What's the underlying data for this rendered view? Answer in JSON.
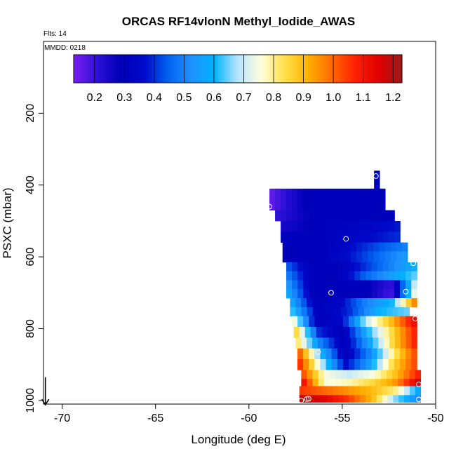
{
  "chart_data": {
    "type": "heatmap",
    "title": "ORCAS RF14vlonN Methyl_Iodide_AWAS",
    "subtitle_flts": "Flts: 14",
    "subtitle_mmdd": "MMDD: 0218",
    "xlabel": "Longitude (deg E)",
    "ylabel": "PSXC (mbar)",
    "xlim": [
      -71,
      -50
    ],
    "ylim": [
      1010,
      0
    ],
    "x_ticks": [
      -70,
      -65,
      -60,
      -55,
      -50
    ],
    "x_tick_labels": [
      "-70",
      "-65",
      "-60",
      "-55",
      "-50"
    ],
    "y_ticks": [
      200,
      400,
      600,
      800,
      1000
    ],
    "y_tick_labels": [
      "200",
      "400",
      "600",
      "800",
      "1000"
    ],
    "colorbar": {
      "min": 0.13,
      "max": 1.23,
      "ticks": [
        0.2,
        0.3,
        0.4,
        0.5,
        0.6,
        0.7,
        0.8,
        0.9,
        1.0,
        1.1,
        1.2
      ],
      "tick_labels": [
        "0.2",
        "0.3",
        "0.4",
        "0.5",
        "0.6",
        "0.7",
        "0.8",
        "0.9",
        "1.0",
        "1.1",
        "1.2"
      ],
      "stops": [
        "#7b1ff0",
        "#2c0fd8",
        "#0000b8",
        "#0008c8",
        "#0060f0",
        "#1e90ff",
        "#00b4ff",
        "#b8e4ff",
        "#ffffdc",
        "#ffe04a",
        "#ffb000",
        "#ff6a00",
        "#ff2000",
        "#e00000",
        "#a01818"
      ]
    },
    "rows": [
      {
        "p0": 360,
        "p1": 385,
        "segments": [
          {
            "x0": -53.3,
            "x1": -53.0,
            "v": [
              0.3,
              0.3
            ]
          }
        ]
      },
      {
        "p0": 385,
        "p1": 410,
        "segments": [
          {
            "x0": -53.3,
            "x1": -53.0,
            "v": [
              0.3,
              0.3
            ]
          }
        ]
      },
      {
        "p0": 410,
        "p1": 440,
        "segments": [
          {
            "x0": -58.9,
            "x1": -52.7,
            "v": [
              0.15,
              0.3,
              0.3,
              0.3
            ]
          }
        ]
      },
      {
        "p0": 440,
        "p1": 470,
        "segments": [
          {
            "x0": -58.9,
            "x1": -52.7,
            "v": [
              0.15,
              0.3,
              0.3,
              0.3
            ]
          }
        ]
      },
      {
        "p0": 470,
        "p1": 500,
        "segments": [
          {
            "x0": -58.6,
            "x1": -52.2,
            "v": [
              0.2,
              0.3,
              0.3,
              0.3
            ]
          }
        ]
      },
      {
        "p0": 500,
        "p1": 530,
        "segments": [
          {
            "x0": -58.3,
            "x1": -51.9,
            "v": [
              0.25,
              0.3,
              0.33,
              0.38
            ]
          }
        ]
      },
      {
        "p0": 530,
        "p1": 560,
        "segments": [
          {
            "x0": -58.3,
            "x1": -51.9,
            "v": [
              0.3,
              0.3,
              0.35,
              0.4
            ]
          }
        ]
      },
      {
        "p0": 560,
        "p1": 585,
        "segments": [
          {
            "x0": -58.2,
            "x1": -51.5,
            "v": [
              0.3,
              0.3,
              0.4,
              0.5
            ]
          }
        ]
      },
      {
        "p0": 585,
        "p1": 615,
        "segments": [
          {
            "x0": -58.2,
            "x1": -51.5,
            "v": [
              0.3,
              0.3,
              0.42,
              0.55
            ]
          }
        ]
      },
      {
        "p0": 615,
        "p1": 640,
        "segments": [
          {
            "x0": -58.0,
            "x1": -51.0,
            "v": [
              0.45,
              0.3,
              0.3,
              0.4,
              0.5,
              0.6
            ]
          }
        ]
      },
      {
        "p0": 640,
        "p1": 665,
        "segments": [
          {
            "x0": -58.0,
            "x1": -51.0,
            "v": [
              0.5,
              0.3,
              0.3,
              0.45,
              0.55,
              0.65
            ]
          }
        ]
      },
      {
        "p0": 665,
        "p1": 690,
        "segments": [
          {
            "x0": -58.0,
            "x1": -51.0,
            "v": [
              0.55,
              0.3,
              0.3,
              0.3,
              0.2,
              0.75
            ]
          }
        ]
      },
      {
        "p0": 690,
        "p1": 715,
        "segments": [
          {
            "x0": -58.0,
            "x1": -51.0,
            "v": [
              0.6,
              0.3,
              0.3,
              0.3,
              0.18,
              0.8
            ]
          }
        ]
      },
      {
        "p0": 715,
        "p1": 740,
        "segments": [
          {
            "x0": -57.8,
            "x1": -51.0,
            "v": [
              0.6,
              0.3,
              0.35,
              0.5,
              0.6,
              1.0
            ]
          }
        ]
      },
      {
        "p0": 740,
        "p1": 765,
        "segments": [
          {
            "x0": -57.8,
            "x1": -51.4,
            "v": [
              0.65,
              0.3,
              0.4,
              0.6,
              0.65
            ]
          }
        ]
      },
      {
        "p0": 765,
        "p1": 795,
        "segments": [
          {
            "x0": -57.7,
            "x1": -51.0,
            "v": [
              0.8,
              0.3,
              0.35,
              0.7,
              0.9,
              1.15
            ]
          }
        ]
      },
      {
        "p0": 795,
        "p1": 825,
        "segments": [
          {
            "x0": -57.6,
            "x1": -51.0,
            "v": [
              0.9,
              0.4,
              0.3,
              0.6,
              0.85,
              1.1
            ]
          }
        ]
      },
      {
        "p0": 825,
        "p1": 855,
        "segments": [
          {
            "x0": -57.5,
            "x1": -51.0,
            "v": [
              0.85,
              0.5,
              0.3,
              0.55,
              0.85,
              1.1
            ]
          }
        ]
      },
      {
        "p0": 855,
        "p1": 885,
        "segments": [
          {
            "x0": -57.4,
            "x1": -51.0,
            "v": [
              1.05,
              0.6,
              0.3,
              0.5,
              0.8,
              1.05
            ]
          }
        ]
      },
      {
        "p0": 885,
        "p1": 915,
        "segments": [
          {
            "x0": -57.4,
            "x1": -51.0,
            "v": [
              1.1,
              0.7,
              0.35,
              0.55,
              0.85,
              1.05
            ]
          }
        ]
      },
      {
        "p0": 915,
        "p1": 940,
        "segments": [
          {
            "x0": -57.2,
            "x1": -50.8,
            "v": [
              1.05,
              0.75,
              0.7,
              0.75,
              0.9,
              1.1
            ]
          }
        ]
      },
      {
        "p0": 940,
        "p1": 960,
        "segments": [
          {
            "x0": -57.2,
            "x1": -50.8,
            "v": [
              1.15,
              0.75,
              0.78,
              0.85,
              0.95,
              1.2
            ]
          }
        ]
      },
      {
        "p0": 960,
        "p1": 985,
        "segments": [
          {
            "x0": -57.3,
            "x1": -50.8,
            "v": [
              1.05,
              1.0,
              0.95,
              0.9,
              0.8,
              0.55
            ]
          }
        ]
      },
      {
        "p0": 985,
        "p1": 1005,
        "segments": [
          {
            "x0": -57.3,
            "x1": -50.8,
            "v": [
              1.2,
              1.15,
              1.05,
              0.9,
              0.65,
              0.5
            ]
          }
        ]
      }
    ],
    "points": [
      {
        "lon": -53.2,
        "p": 375
      },
      {
        "lon": -58.9,
        "p": 460
      },
      {
        "lon": -52.4,
        "p": 462
      },
      {
        "lon": -54.8,
        "p": 550
      },
      {
        "lon": -51.2,
        "p": 618
      },
      {
        "lon": -55.6,
        "p": 700
      },
      {
        "lon": -51.6,
        "p": 697
      },
      {
        "lon": -51.1,
        "p": 772
      },
      {
        "lon": -56.3,
        "p": 865
      },
      {
        "lon": -50.9,
        "p": 955
      },
      {
        "lon": -57.2,
        "p": 1000
      },
      {
        "lon": -56.9,
        "p": 996
      },
      {
        "lon": -56.8,
        "p": 995
      },
      {
        "lon": -50.9,
        "p": 997
      }
    ],
    "arrow": {
      "lon": -70.9,
      "p_from": 935,
      "p_to": 1012
    }
  }
}
